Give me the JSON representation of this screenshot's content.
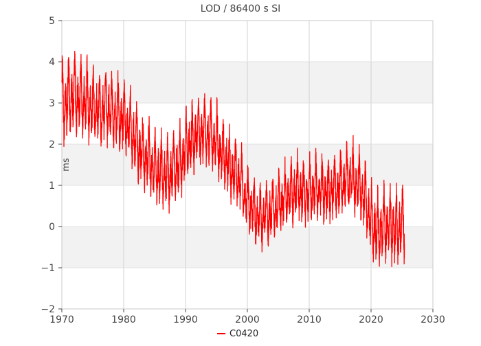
{
  "chart_data": {
    "type": "line",
    "title": "LOD / 86400 s SI",
    "xlabel": "",
    "ylabel": "ms",
    "xlim": [
      1970,
      2030
    ],
    "ylim": [
      -2,
      5
    ],
    "x_ticks": [
      1970,
      1980,
      1990,
      2000,
      2010,
      2020,
      2030
    ],
    "y_ticks": [
      -2,
      -1,
      0,
      1,
      2,
      3,
      4,
      5
    ],
    "grid": true,
    "legend": {
      "position": "bottom-center",
      "entries": [
        "C0420"
      ]
    },
    "series": [
      {
        "name": "C0420",
        "color": "#ff0000",
        "trend": {
          "x": [
            1970.0,
            1971.0,
            1972.0,
            1973.0,
            1974.0,
            1975.0,
            1976.0,
            1977.0,
            1978.0,
            1979.0,
            1980.0,
            1981.0,
            1982.0,
            1983.0,
            1984.0,
            1985.0,
            1986.0,
            1987.0,
            1988.0,
            1989.0,
            1990.0,
            1991.0,
            1992.0,
            1993.0,
            1994.0,
            1995.0,
            1996.0,
            1997.0,
            1998.0,
            1999.0,
            2000.0,
            2001.0,
            2002.0,
            2003.0,
            2004.0,
            2005.0,
            2006.0,
            2007.0,
            2008.0,
            2009.0,
            2010.0,
            2011.0,
            2012.0,
            2013.0,
            2014.0,
            2015.0,
            2016.0,
            2017.0,
            2018.0,
            2019.0,
            2020.0,
            2021.0,
            2022.0,
            2023.0,
            2024.0,
            2025.4
          ],
          "y": [
            2.9,
            3.1,
            3.2,
            3.1,
            3.0,
            2.9,
            2.8,
            2.9,
            2.8,
            2.7,
            2.6,
            2.4,
            2.1,
            1.8,
            1.7,
            1.4,
            1.3,
            1.2,
            1.4,
            1.5,
            1.9,
            2.1,
            2.3,
            2.3,
            2.2,
            2.1,
            1.8,
            1.5,
            1.3,
            1.1,
            0.6,
            0.4,
            0.2,
            0.3,
            0.4,
            0.5,
            0.7,
            0.8,
            0.9,
            0.8,
            0.8,
            0.9,
            0.9,
            0.8,
            0.9,
            1.0,
            1.1,
            1.2,
            1.0,
            0.7,
            0.1,
            -0.1,
            0.0,
            0.1,
            -0.1,
            0.1
          ]
        },
        "amplitude": {
          "x": [
            1970,
            1975,
            1980,
            1985,
            1990,
            1995,
            2000,
            2005,
            2010,
            2015,
            2020,
            2025.4
          ],
          "y": [
            0.9,
            0.8,
            0.75,
            0.75,
            0.75,
            0.7,
            0.65,
            0.65,
            0.65,
            0.65,
            0.75,
            0.8
          ]
        },
        "points_per_year": 60
      }
    ]
  }
}
